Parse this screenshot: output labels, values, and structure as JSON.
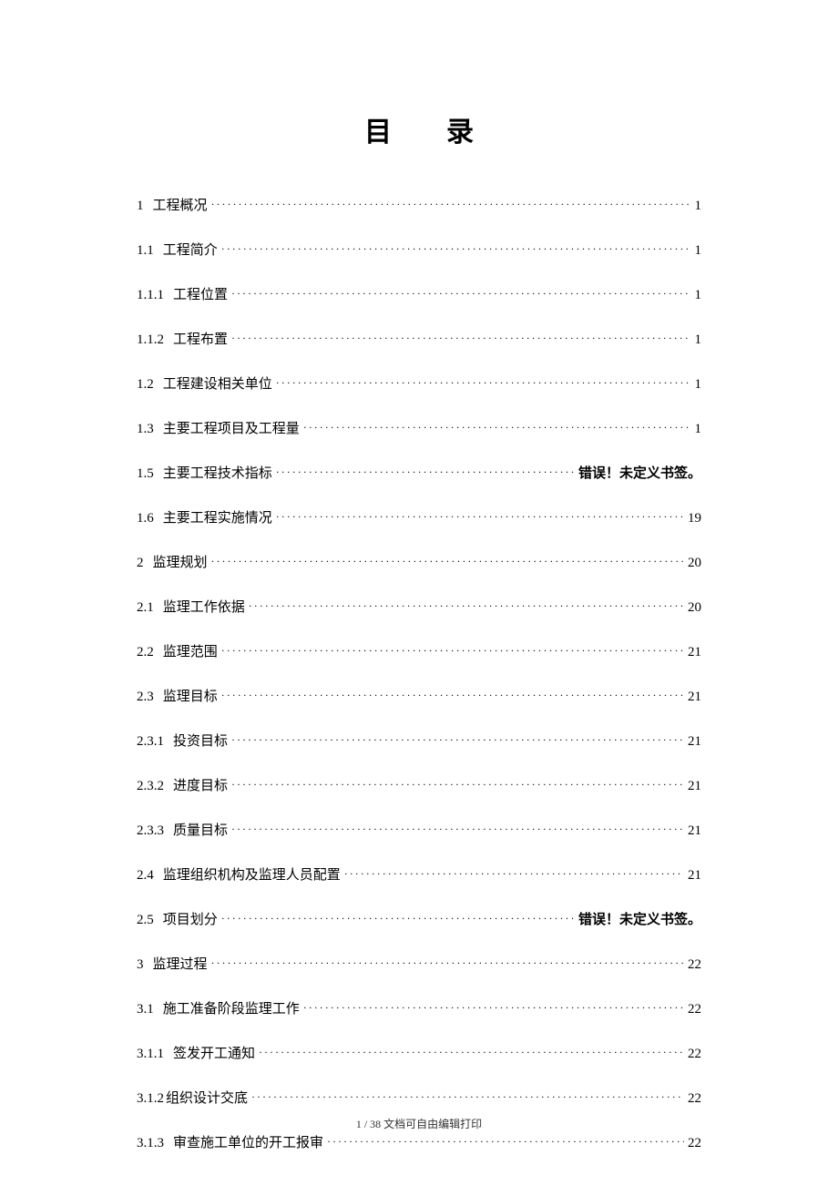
{
  "title": "目录",
  "error_text": "错误！未定义书签。",
  "toc": [
    {
      "num": "1",
      "text": "工程概况",
      "page": "1"
    },
    {
      "num": "1.1",
      "text": "工程简介",
      "page": "1"
    },
    {
      "num": "1.1.1",
      "text": "工程位置",
      "page": "1"
    },
    {
      "num": "1.1.2",
      "text": "工程布置",
      "page": "1"
    },
    {
      "num": "1.2",
      "text": "工程建设相关单位",
      "page": "1"
    },
    {
      "num": "1.3",
      "text": "主要工程项目及工程量",
      "page": "1"
    },
    {
      "num": "1.5",
      "text": "主要工程技术指标",
      "page": "ERROR"
    },
    {
      "num": "1.6",
      "text": "主要工程实施情况",
      "page": "19"
    },
    {
      "num": "2",
      "text": "监理规划",
      "page": "20"
    },
    {
      "num": "2.1",
      "text": "监理工作依据",
      "page": "20"
    },
    {
      "num": "2.2",
      "text": "监理范围",
      "page": "21"
    },
    {
      "num": "2.3",
      "text": "监理目标",
      "page": "21"
    },
    {
      "num": "2.3.1",
      "text": "投资目标",
      "page": "21"
    },
    {
      "num": "2.3.2",
      "text": "进度目标",
      "page": "21"
    },
    {
      "num": "2.3.3",
      "text": "质量目标",
      "page": "21"
    },
    {
      "num": "2.4",
      "text": "监理组织机构及监理人员配置",
      "page": "21"
    },
    {
      "num": "2.5",
      "text": "项目划分",
      "page": "ERROR"
    },
    {
      "num": "3",
      "text": "监理过程",
      "page": "22"
    },
    {
      "num": "3.1",
      "text": "施工准备阶段监理工作",
      "page": "22"
    },
    {
      "num": "3.1.1",
      "text": "签发开工通知",
      "page": "22"
    },
    {
      "num": "3.1.2",
      "text": "组织设计交底",
      "page": "22",
      "nospace": true
    },
    {
      "num": "3.1.3",
      "text": "审查施工单位的开工报审",
      "page": "22"
    }
  ],
  "footer": "1 / 38 文档可自由编辑打印"
}
